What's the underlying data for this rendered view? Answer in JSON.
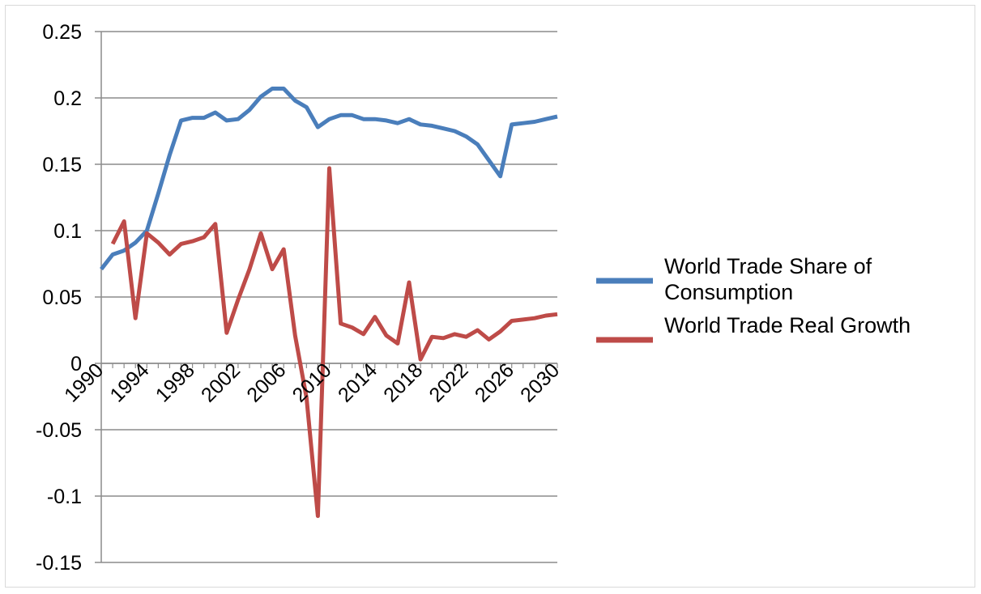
{
  "chart_data": {
    "type": "line",
    "title": "",
    "xlabel": "",
    "ylabel": "",
    "x": [
      1990,
      1991,
      1992,
      1993,
      1994,
      1995,
      1996,
      1997,
      1998,
      1999,
      2000,
      2001,
      2002,
      2003,
      2004,
      2005,
      2006,
      2007,
      2008,
      2009,
      2010,
      2011,
      2012,
      2013,
      2014,
      2015,
      2016,
      2017,
      2018,
      2019,
      2020,
      2021,
      2022,
      2023,
      2024,
      2025,
      2026,
      2027,
      2028,
      2029,
      2030
    ],
    "xtick_labels": [
      "1990",
      "1994",
      "1998",
      "2002",
      "2006",
      "2010",
      "2014",
      "2018",
      "2022",
      "2026",
      "2030"
    ],
    "ytick_labels": [
      "0.25",
      "0.2",
      "0.15",
      "0.1",
      "0.05",
      "0",
      "-0.05",
      "-0.1",
      "-0.15"
    ],
    "ylim": [
      -0.15,
      0.25
    ],
    "grid": "horizontal",
    "legend_position": "right",
    "series": [
      {
        "name": "World Trade Share of Consumption",
        "color": "#4a7ebb",
        "values": [
          0.071,
          0.082,
          0.085,
          0.091,
          0.1,
          0.128,
          0.157,
          0.183,
          0.185,
          0.185,
          0.189,
          0.183,
          0.184,
          0.191,
          0.201,
          0.207,
          0.207,
          0.198,
          0.193,
          0.178,
          0.184,
          0.187,
          0.187,
          0.184,
          0.184,
          0.183,
          0.181,
          0.184,
          0.18,
          0.179,
          0.177,
          0.175,
          0.171,
          0.165,
          0.153,
          0.141,
          0.18,
          0.181,
          0.182,
          0.184,
          0.186
        ]
      },
      {
        "name": "World Trade Real Growth",
        "color": "#be4b48",
        "values": [
          null,
          0.09,
          0.107,
          0.034,
          0.098,
          0.091,
          0.082,
          0.09,
          0.092,
          0.095,
          0.105,
          0.023,
          0.048,
          0.071,
          0.098,
          0.071,
          0.086,
          0.021,
          -0.026,
          -0.115,
          0.147,
          0.03,
          0.027,
          0.022,
          0.035,
          0.021,
          0.015,
          0.061,
          0.003,
          0.02,
          0.019,
          0.022,
          0.02,
          0.025,
          0.018,
          0.024,
          0.032,
          0.033,
          0.034,
          0.036,
          0.037
        ]
      }
    ]
  }
}
